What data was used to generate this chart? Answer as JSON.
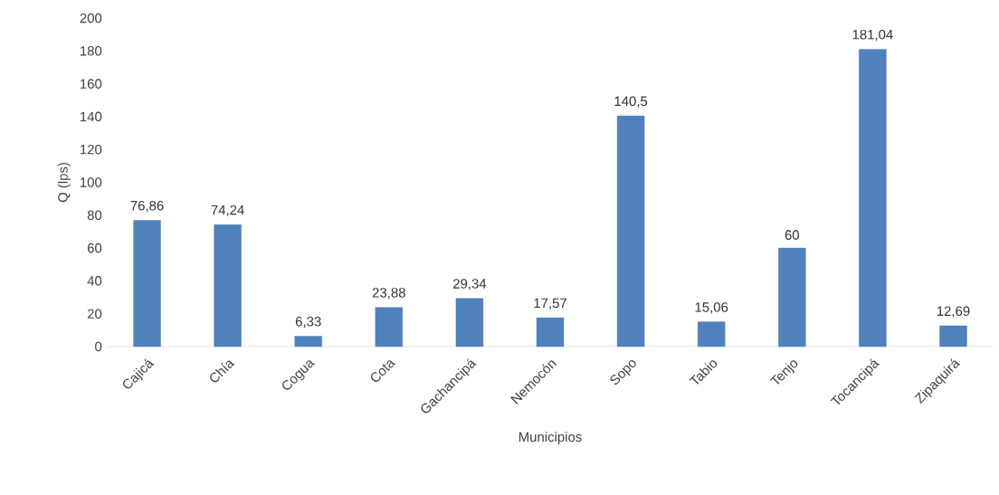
{
  "chart_data": {
    "type": "bar",
    "xlabel": "Municipios",
    "ylabel": "Q (lps)",
    "categories": [
      "Cajicá",
      "Chía",
      "Cogua",
      "Cota",
      "Gachancipá",
      "Nemocón",
      "Sopo",
      "Tabio",
      "Tenjo",
      "Tocancipá",
      "Zipaquirá"
    ],
    "values": [
      76.86,
      74.24,
      6.33,
      23.88,
      29.34,
      17.57,
      140.5,
      15.06,
      60,
      181.04,
      12.69
    ],
    "value_labels": [
      "76,86",
      "74,24",
      "6,33",
      "23,88",
      "29,34",
      "17,57",
      "140,5",
      "15,06",
      "60",
      "181,04",
      "12,69"
    ],
    "color": "#4f81bd",
    "ylim": [
      0,
      200
    ],
    "yticks": [
      0,
      20,
      40,
      60,
      80,
      100,
      120,
      140,
      160,
      180,
      200
    ],
    "grid": false
  }
}
